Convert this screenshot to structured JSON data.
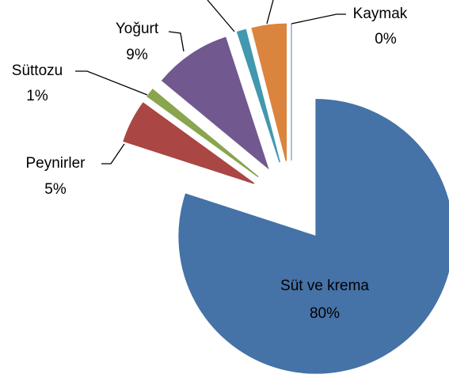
{
  "chart_data": {
    "type": "pie",
    "categories": [
      "Süt ve krema",
      "Peynirler",
      "Süttozu",
      "Yoğurt",
      null,
      null,
      "Kaymak"
    ],
    "values": [
      80,
      5,
      1,
      9,
      1,
      4,
      0
    ],
    "value_labels": [
      "80%",
      "5%",
      "1%",
      "9%",
      null,
      null,
      "0%"
    ],
    "colors": [
      "#4572a7",
      "#aa4643",
      "#89a54e",
      "#71588f",
      "#4198af",
      "#db843d",
      "#93a9cf"
    ],
    "exploded": true
  }
}
